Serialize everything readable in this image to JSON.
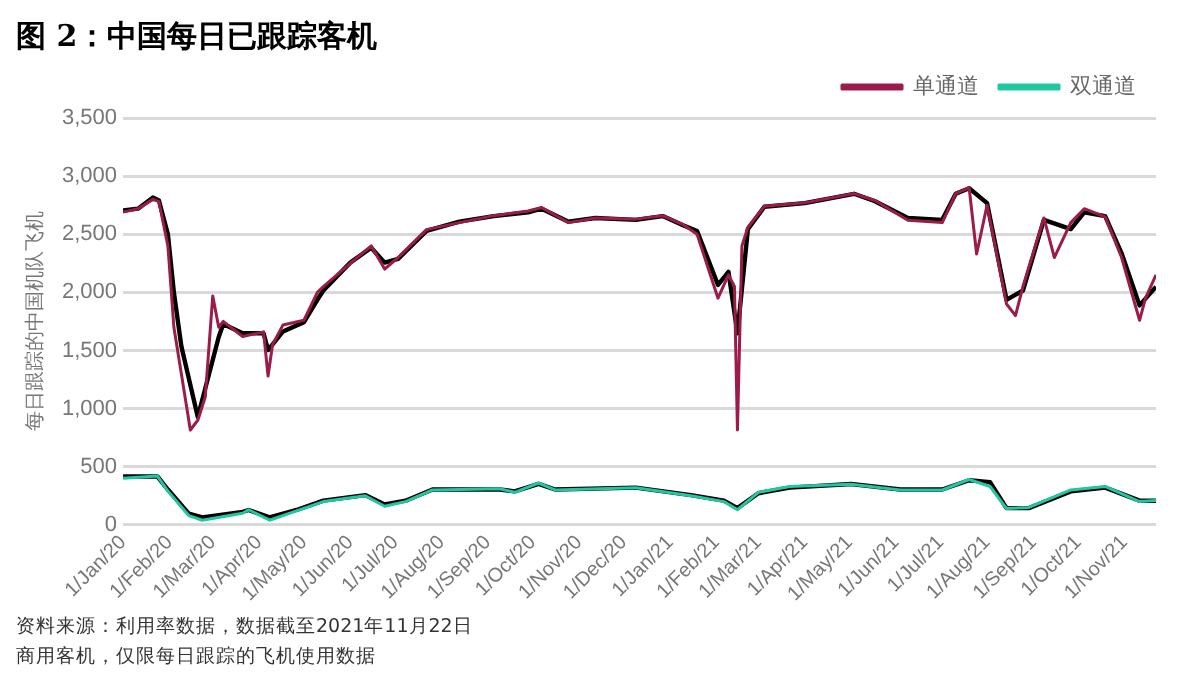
{
  "chart_data": {
    "type": "line",
    "title": "图 2：中国每日已跟踪客机",
    "ylabel": "每日跟踪的中国机队飞机",
    "annotations": [
      "资料来源：利用率数据，数据截至2021年11月22日",
      "商用客机，仅限每日跟踪的飞机使用数据"
    ],
    "legend": "top right",
    "grid": "y",
    "marker": "none",
    "line_style": "solid",
    "ylim": [
      0,
      3500
    ],
    "yticks": [
      {
        "value": 0,
        "label": "0"
      },
      {
        "value": 500,
        "label": "500"
      },
      {
        "value": 1000,
        "label": "1,000"
      },
      {
        "value": 1500,
        "label": "1,500"
      },
      {
        "value": 2000,
        "label": "2,000"
      },
      {
        "value": 2500,
        "label": "2,500"
      },
      {
        "value": 3000,
        "label": "3,000"
      },
      {
        "value": 3500,
        "label": "3,500"
      }
    ],
    "xlim": [
      "2020-01-01",
      "2021-11-22"
    ],
    "xticks": [
      {
        "value": "2020-01-01",
        "label": "1/Jan/20"
      },
      {
        "value": "2020-02-01",
        "label": "1/Feb/20"
      },
      {
        "value": "2020-03-01",
        "label": "1/Mar/20"
      },
      {
        "value": "2020-04-01",
        "label": "1/Apr/20"
      },
      {
        "value": "2020-05-01",
        "label": "1/May/20"
      },
      {
        "value": "2020-06-01",
        "label": "1/Jun/20"
      },
      {
        "value": "2020-07-01",
        "label": "1/Jul/20"
      },
      {
        "value": "2020-08-01",
        "label": "1/Aug/20"
      },
      {
        "value": "2020-09-01",
        "label": "1/Sep/20"
      },
      {
        "value": "2020-10-01",
        "label": "1/Oct/20"
      },
      {
        "value": "2020-11-01",
        "label": "1/Nov/20"
      },
      {
        "value": "2020-12-01",
        "label": "1/Dec/20"
      },
      {
        "value": "2021-01-01",
        "label": "1/Jan/21"
      },
      {
        "value": "2021-02-01",
        "label": "1/Feb/21"
      },
      {
        "value": "2021-03-01",
        "label": "1/Mar/21"
      },
      {
        "value": "2021-04-01",
        "label": "1/Apr/21"
      },
      {
        "value": "2021-05-01",
        "label": "1/May/21"
      },
      {
        "value": "2021-06-01",
        "label": "1/Jun/21"
      },
      {
        "value": "2021-07-01",
        "label": "1/Jul/21"
      },
      {
        "value": "2021-08-01",
        "label": "1/Aug/21"
      },
      {
        "value": "2021-09-01",
        "label": "1/Sep/21"
      },
      {
        "value": "2021-10-01",
        "label": "1/Oct/21"
      },
      {
        "value": "2021-11-01",
        "label": "1/Nov/21"
      }
    ],
    "series": [
      {
        "name": "单通道",
        "color": "#9b1b4a",
        "x": [
          "2020-01-01",
          "2020-01-11",
          "2020-01-21",
          "2020-01-25",
          "2020-01-31",
          "2020-02-04",
          "2020-02-09",
          "2020-02-15",
          "2020-02-20",
          "2020-02-25",
          "2020-03-01",
          "2020-03-05",
          "2020-03-08",
          "2020-03-21",
          "2020-04-04",
          "2020-04-07",
          "2020-04-10",
          "2020-04-17",
          "2020-05-01",
          "2020-05-10",
          "2020-05-14",
          "2020-06-01",
          "2020-06-15",
          "2020-06-24",
          "2020-07-03",
          "2020-07-22",
          "2020-08-13",
          "2020-09-05",
          "2020-09-28",
          "2020-10-07",
          "2020-10-25",
          "2020-11-12",
          "2020-12-09",
          "2020-12-27",
          "2021-01-10",
          "2021-01-19",
          "2021-02-02",
          "2021-02-09",
          "2021-02-13",
          "2021-02-15",
          "2021-02-18",
          "2021-02-22",
          "2021-03-05",
          "2021-04-01",
          "2021-05-04",
          "2021-05-18",
          "2021-06-09",
          "2021-07-02",
          "2021-07-11",
          "2021-07-20",
          "2021-07-25",
          "2021-08-01",
          "2021-08-14",
          "2021-08-20",
          "2021-08-25",
          "2021-09-08",
          "2021-09-15",
          "2021-09-26",
          "2021-10-05",
          "2021-10-19",
          "2021-10-30",
          "2021-11-11",
          "2021-11-15",
          "2021-11-22"
        ],
        "values": [
          2690,
          2720,
          2800,
          2780,
          2400,
          1700,
          1300,
          816,
          900,
          1100,
          1968,
          1700,
          1750,
          1620,
          1660,
          1280,
          1550,
          1720,
          1760,
          2000,
          2050,
          2250,
          2400,
          2200,
          2300,
          2540,
          2600,
          2660,
          2700,
          2730,
          2600,
          2640,
          2630,
          2660,
          2580,
          2500,
          1950,
          2150,
          2050,
          816,
          2400,
          2560,
          2740,
          2770,
          2850,
          2790,
          2620,
          2600,
          2850,
          2900,
          2330,
          2750,
          1900,
          1800,
          2050,
          2640,
          2300,
          2600,
          2720,
          2650,
          2300,
          1760,
          1950,
          2150
        ]
      },
      {
        "color": "#000000",
        "x": [
          "2020-01-01",
          "2020-01-11",
          "2020-01-21",
          "2020-01-25",
          "2020-01-31",
          "2020-02-04",
          "2020-02-09",
          "2020-02-20",
          "2020-03-05",
          "2020-03-08",
          "2020-03-21",
          "2020-04-04",
          "2020-04-07",
          "2020-04-17",
          "2020-05-01",
          "2020-05-10",
          "2020-05-14",
          "2020-06-01",
          "2020-06-15",
          "2020-06-24",
          "2020-07-03",
          "2020-07-22",
          "2020-08-13",
          "2020-09-05",
          "2020-09-28",
          "2020-10-07",
          "2020-10-25",
          "2020-11-12",
          "2020-12-09",
          "2020-12-27",
          "2021-01-10",
          "2021-01-19",
          "2021-02-02",
          "2021-02-09",
          "2021-02-15",
          "2021-02-22",
          "2021-03-05",
          "2021-04-01",
          "2021-05-04",
          "2021-05-18",
          "2021-06-09",
          "2021-07-02",
          "2021-07-11",
          "2021-07-20",
          "2021-08-01",
          "2021-08-14",
          "2021-08-25",
          "2021-09-08",
          "2021-09-26",
          "2021-10-05",
          "2021-10-19",
          "2021-10-30",
          "2021-11-11",
          "2021-11-22"
        ],
        "values": [
          2704,
          2720,
          2816,
          2790,
          2500,
          2000,
          1536,
          928,
          1616,
          1728,
          1648,
          1648,
          1504,
          1664,
          1744,
          1936,
          2016,
          2256,
          2384,
          2256,
          2288,
          2528,
          2608,
          2656,
          2688,
          2720,
          2608,
          2640,
          2624,
          2656,
          2576,
          2528,
          2064,
          2176,
          1648,
          2544,
          2736,
          2768,
          2848,
          2784,
          2640,
          2624,
          2848,
          2896,
          2768,
          1936,
          2016,
          2624,
          2544,
          2688,
          2656,
          2336,
          1888,
          2048
        ]
      },
      {
        "name": "双通道",
        "color": "#1fc8a0",
        "x": [
          "2020-01-01",
          "2020-01-24",
          "2020-01-31",
          "2020-02-14",
          "2020-02-23",
          "2020-03-21",
          "2020-03-25",
          "2020-04-08",
          "2020-04-26",
          "2020-05-14",
          "2020-06-11",
          "2020-06-24",
          "2020-07-08",
          "2020-07-26",
          "2020-09-09",
          "2020-09-19",
          "2020-10-05",
          "2020-10-16",
          "2020-12-09",
          "2021-01-15",
          "2021-02-06",
          "2021-02-15",
          "2021-03-01",
          "2021-03-22",
          "2021-05-02",
          "2021-06-04",
          "2021-07-02",
          "2021-07-20",
          "2021-08-03",
          "2021-08-14",
          "2021-08-29",
          "2021-09-26",
          "2021-10-19",
          "2021-11-11",
          "2021-11-22"
        ],
        "values": [
          400,
          420,
          290,
          80,
          40,
          100,
          130,
          40,
          120,
          200,
          250,
          160,
          200,
          300,
          310,
          280,
          360,
          300,
          320,
          250,
          200,
          130,
          280,
          330,
          350,
          300,
          300,
          390,
          330,
          140,
          150,
          300,
          330,
          200,
          210
        ]
      },
      {
        "color": "#000000",
        "x": [
          "2020-01-01",
          "2020-01-24",
          "2020-01-31",
          "2020-02-14",
          "2020-02-23",
          "2020-03-21",
          "2020-03-25",
          "2020-04-08",
          "2020-04-26",
          "2020-05-14",
          "2020-06-11",
          "2020-06-24",
          "2020-07-08",
          "2020-07-26",
          "2020-09-09",
          "2020-09-19",
          "2020-10-05",
          "2020-10-16",
          "2020-12-09",
          "2021-01-15",
          "2021-02-06",
          "2021-02-15",
          "2021-03-01",
          "2021-03-22",
          "2021-05-02",
          "2021-06-04",
          "2021-07-02",
          "2021-07-20",
          "2021-08-03",
          "2021-08-14",
          "2021-08-29",
          "2021-09-26",
          "2021-10-19",
          "2021-11-11",
          "2021-11-22"
        ],
        "values": [
          416,
          416,
          304,
          96,
          64,
          112,
          128,
          64,
          128,
          208,
          256,
          176,
          208,
          304,
          304,
          288,
          352,
          304,
          320,
          256,
          208,
          144,
          272,
          320,
          352,
          304,
          304,
          384,
          368,
          144,
          144,
          288,
          320,
          208,
          208
        ]
      }
    ]
  }
}
